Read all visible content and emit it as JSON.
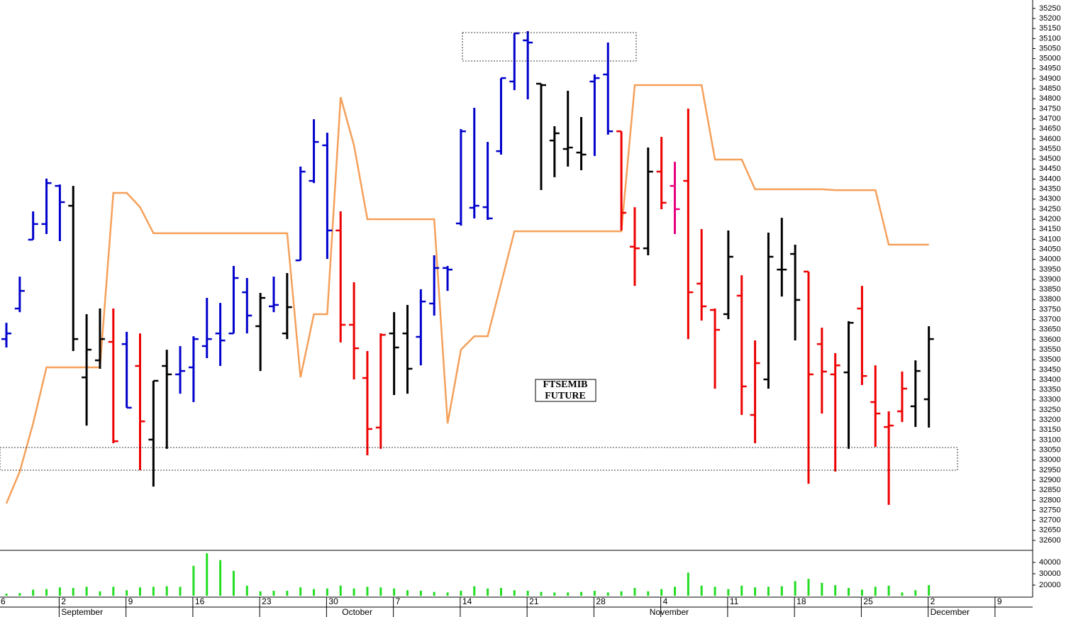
{
  "chart_data": [
    {
      "type": "ohlc",
      "annotation": [
        "FTSEMIB",
        "FUTURE"
      ],
      "categories": [
        "6",
        null,
        null,
        null,
        null,
        "2",
        null,
        null,
        null,
        null,
        "9",
        null,
        null,
        null,
        null,
        "16",
        null,
        null,
        null,
        null,
        "23",
        null,
        null,
        null,
        null,
        "30",
        null,
        null,
        null,
        null,
        "7",
        null,
        null,
        null,
        null,
        "14",
        null,
        null,
        null,
        null,
        "21",
        null,
        null,
        null,
        null,
        "28",
        null,
        null,
        null,
        null,
        "4",
        null,
        null,
        null,
        null,
        "11",
        null,
        null,
        null,
        null,
        "18",
        null,
        null,
        null,
        null,
        "25",
        null,
        null,
        null,
        null,
        "2",
        null,
        null,
        null,
        null,
        "9"
      ],
      "months": [
        null,
        null,
        null,
        null,
        null,
        "September",
        null,
        null,
        null,
        null,
        null,
        null,
        null,
        null,
        null,
        null,
        null,
        null,
        null,
        null,
        null,
        null,
        null,
        null,
        null,
        null,
        "October",
        null,
        null,
        null,
        null,
        null,
        null,
        null,
        null,
        null,
        null,
        null,
        null,
        null,
        null,
        null,
        null,
        null,
        null,
        null,
        null,
        null,
        null,
        "November",
        null,
        null,
        null,
        null,
        null,
        null,
        null,
        null,
        null,
        null,
        null,
        null,
        null,
        null,
        null,
        null,
        null,
        null,
        null,
        null,
        "December",
        null,
        null,
        null,
        null,
        null
      ],
      "open": [
        null,
        33603,
        33755,
        34098,
        34176,
        34366,
        34267,
        33412,
        33497,
        33589,
        33578,
        33469,
        33102,
        33469,
        33427,
        33462,
        33568,
        33631,
        33631,
        33836,
        33667,
        33766,
        33631,
        33995,
        34391,
        34568,
        34144,
        33674,
        33409,
        33162,
        33631,
        33631,
        33614,
        33780,
        33957,
        34179,
        34257,
        34260,
        34539,
        34886,
        35091,
        34875,
        34592,
        34550,
        34532,
        34886,
        34921,
        34638,
        34063,
        34055,
        34437,
        34366,
        34391,
        33879,
        33748,
        33727,
        33819,
        33225,
        33402,
        33949,
        34027,
        33939,
        33578,
        33427,
        33437,
        33755,
        33289,
        33165,
        33243,
        33268,
        33303,
        null,
        null,
        null,
        null,
        null
      ],
      "high": [
        null,
        33684,
        33914,
        34239,
        34402,
        34373,
        34366,
        33727,
        33755,
        33755,
        33639,
        33631,
        33395,
        33550,
        33568,
        33617,
        33808,
        33783,
        33967,
        33907,
        33833,
        33914,
        33932,
        34462,
        34698,
        34631,
        34239,
        33886,
        33543,
        33631,
        33737,
        33773,
        33851,
        34020,
        33967,
        34649,
        34755,
        34585,
        34903,
        35126,
        35137,
        34875,
        34663,
        34840,
        34709,
        34921,
        35080,
        34638,
        34260,
        34557,
        34610,
        34486,
        34751,
        34151,
        33755,
        34144,
        33921,
        33596,
        34133,
        34207,
        34073,
        33939,
        33660,
        33533,
        33692,
        33868,
        33472,
        33243,
        33441,
        33497,
        33667,
        null,
        null,
        null,
        null,
        null
      ],
      "low": [
        null,
        33561,
        33737,
        34098,
        34126,
        34091,
        33543,
        33172,
        33455,
        33084,
        33261,
        32950,
        32868,
        33056,
        33331,
        33289,
        33508,
        33469,
        33631,
        33631,
        33444,
        33737,
        33603,
        33995,
        34380,
        34002,
        33586,
        33402,
        33024,
        33056,
        33324,
        33331,
        33472,
        33720,
        33843,
        34168,
        34204,
        34197,
        34522,
        34843,
        34797,
        34345,
        34409,
        34462,
        34444,
        34515,
        34621,
        34144,
        33868,
        34020,
        34250,
        34126,
        33603,
        33695,
        33356,
        33702,
        33225,
        33084,
        33356,
        33815,
        33596,
        32882,
        33232,
        32943,
        33056,
        33374,
        33066,
        32777,
        33190,
        33165,
        33162,
        null,
        null,
        null,
        null,
        null
      ],
      "close": [
        null,
        33631,
        33843,
        34176,
        34380,
        34285,
        33603,
        33550,
        33603,
        33094,
        33261,
        33193,
        33395,
        33427,
        33444,
        33603,
        33603,
        33596,
        33907,
        33720,
        33808,
        33773,
        33762,
        34437,
        34585,
        34144,
        33674,
        33557,
        33155,
        33624,
        33561,
        33455,
        33790,
        33957,
        33949,
        34638,
        34267,
        34204,
        34903,
        35126,
        35080,
        34868,
        34628,
        34557,
        34522,
        34903,
        34638,
        34232,
        34055,
        34437,
        34282,
        34250,
        33836,
        33766,
        33649,
        34013,
        33367,
        33483,
        34013,
        33949,
        33798,
        33427,
        33441,
        33472,
        33684,
        33419,
        33232,
        33172,
        33356,
        33444,
        33603,
        null,
        null,
        null,
        null,
        null
      ],
      "colors": [
        null,
        "#0000cc",
        "#0000cc",
        "#0000cc",
        "#0000cc",
        "#0000cc",
        "#000000",
        "#000000",
        "#000000",
        "#ee0000",
        "#0000cc",
        "#ee0000",
        "#000000",
        "#000000",
        "#0000cc",
        "#0000cc",
        "#0000cc",
        "#0000cc",
        "#0000cc",
        "#0000cc",
        "#000000",
        "#0000cc",
        "#000000",
        "#0000cc",
        "#0000cc",
        "#0000cc",
        "#ee0000",
        "#ee0000",
        "#ee0000",
        "#ee0000",
        "#000000",
        "#000000",
        "#0000cc",
        "#0000cc",
        "#0000cc",
        "#0000cc",
        "#0000cc",
        "#0000cc",
        "#0000cc",
        "#0000cc",
        "#0000cc",
        "#000000",
        "#000000",
        "#000000",
        "#000000",
        "#0000cc",
        "#0000cc",
        "#ee0000",
        "#ee0000",
        "#000000",
        "#ee0000",
        "#e6007e",
        "#ee0000",
        "#ee0000",
        "#ee0000",
        "#000000",
        "#ee0000",
        "#ee0000",
        "#000000",
        "#000000",
        "#000000",
        "#ee0000",
        "#ee0000",
        "#ee0000",
        "#000000",
        "#ee0000",
        "#ee0000",
        "#ee0000",
        "#ee0000",
        "#000000",
        "#000000",
        null,
        null,
        null,
        null,
        null
      ],
      "line": {
        "color": "#f5a05a",
        "values": [
          null,
          32784,
          32943,
          33183,
          33462,
          33462,
          33462,
          33462,
          33462,
          34331,
          34331,
          34260,
          34130,
          34130,
          34130,
          34130,
          34130,
          34130,
          34130,
          34130,
          34130,
          34130,
          34130,
          33412,
          33727,
          33727,
          34808,
          34568,
          34200,
          34200,
          34200,
          34200,
          34200,
          34200,
          33183,
          33550,
          33617,
          33617,
          33879,
          34140,
          34140,
          34140,
          34140,
          34140,
          34140,
          34140,
          34140,
          34140,
          34868,
          34868,
          34868,
          34868,
          34868,
          34868,
          34497,
          34497,
          34497,
          34349,
          34349,
          34349,
          34349,
          34349,
          34349,
          34345,
          34345,
          34345,
          34345,
          34073,
          34073,
          34073,
          34073,
          null,
          null,
          null,
          null,
          null
        ]
      },
      "ylim": [
        32554,
        35292
      ],
      "yticks": [
        32600,
        32650,
        32700,
        32750,
        32800,
        32850,
        32900,
        32950,
        33000,
        33050,
        33100,
        33150,
        33200,
        33250,
        33300,
        33350,
        33400,
        33450,
        33500,
        33550,
        33600,
        33650,
        33700,
        33750,
        33800,
        33850,
        33900,
        33950,
        34000,
        34050,
        34100,
        34150,
        34200,
        34250,
        34300,
        34350,
        34400,
        34450,
        34500,
        34550,
        34600,
        34650,
        34700,
        34750,
        34800,
        34850,
        34900,
        34950,
        35000,
        35050,
        35100,
        35150,
        35200,
        35250
      ]
    },
    {
      "type": "bar",
      "color": "#22dd22",
      "values": [
        null,
        12500,
        13000,
        16000,
        16500,
        18000,
        17500,
        18500,
        14500,
        18500,
        15500,
        18000,
        18500,
        19000,
        18500,
        37000,
        48000,
        42000,
        32500,
        19500,
        14500,
        15000,
        15000,
        18000,
        16500,
        17000,
        19500,
        17000,
        18500,
        18000,
        17000,
        15500,
        15000,
        14000,
        13500,
        15000,
        19000,
        17000,
        17500,
        15500,
        15000,
        14000,
        13500,
        13500,
        14000,
        15000,
        13500,
        14500,
        17500,
        14500,
        16500,
        18500,
        31000,
        19500,
        18500,
        16500,
        19500,
        18000,
        18500,
        19000,
        23500,
        25500,
        22000,
        20000,
        17500,
        16000,
        18500,
        19500,
        13500,
        15500,
        20000,
        null,
        null,
        null,
        null,
        null
      ],
      "ylim": [
        10625,
        50000
      ],
      "yticks": [
        20000,
        30000,
        40000
      ]
    }
  ]
}
